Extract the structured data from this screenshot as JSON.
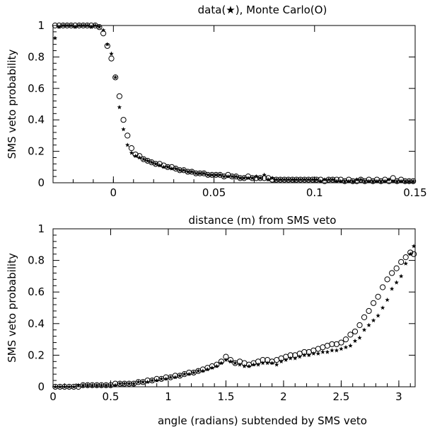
{
  "chart_data": [
    {
      "type": "scatter",
      "title": "data(★), Monte Carlo(O)",
      "xlabel": "distance (m) from SMS veto",
      "ylabel": "SMS veto probability",
      "xlim": [
        -0.03,
        0.15
      ],
      "ylim": [
        0,
        1
      ],
      "xticks": [
        0,
        0.05,
        0.1,
        0.15
      ],
      "xtick_labels": [
        "0",
        "0.05",
        "0.1",
        "0.15"
      ],
      "yticks": [
        0,
        0.2,
        0.4,
        0.6,
        0.8,
        1
      ],
      "ytick_labels": [
        "0",
        "0.2",
        "0.4",
        "0.6",
        "0.8",
        "1"
      ],
      "grid": false,
      "series": [
        {
          "name": "data",
          "marker": "star",
          "x": [
            -0.029,
            -0.027,
            -0.025,
            -0.023,
            -0.021,
            -0.019,
            -0.017,
            -0.015,
            -0.013,
            -0.011,
            -0.009,
            -0.007,
            -0.005,
            -0.003,
            -0.001,
            0.001,
            0.003,
            0.005,
            0.007,
            0.009,
            0.011,
            0.013,
            0.015,
            0.017,
            0.019,
            0.021,
            0.023,
            0.025,
            0.027,
            0.029,
            0.031,
            0.033,
            0.035,
            0.037,
            0.039,
            0.041,
            0.043,
            0.045,
            0.047,
            0.049,
            0.051,
            0.053,
            0.055,
            0.057,
            0.059,
            0.061,
            0.063,
            0.065,
            0.067,
            0.069,
            0.071,
            0.073,
            0.075,
            0.077,
            0.079,
            0.081,
            0.083,
            0.085,
            0.087,
            0.089,
            0.091,
            0.093,
            0.095,
            0.097,
            0.099,
            0.101,
            0.103,
            0.105,
            0.107,
            0.109,
            0.111,
            0.113,
            0.115,
            0.117,
            0.119,
            0.121,
            0.123,
            0.125,
            0.127,
            0.129,
            0.131,
            0.133,
            0.135,
            0.137,
            0.139,
            0.141,
            0.143,
            0.145,
            0.147,
            0.149
          ],
          "y": [
            0.92,
            0.99,
            1.0,
            1.0,
            1.0,
            0.99,
            1.0,
            1.0,
            1.0,
            0.99,
            1.0,
            0.99,
            0.97,
            0.88,
            0.82,
            0.67,
            0.48,
            0.34,
            0.24,
            0.19,
            0.17,
            0.16,
            0.15,
            0.14,
            0.13,
            0.12,
            0.11,
            0.1,
            0.1,
            0.09,
            0.09,
            0.08,
            0.08,
            0.07,
            0.07,
            0.06,
            0.06,
            0.06,
            0.05,
            0.05,
            0.05,
            0.05,
            0.04,
            0.04,
            0.04,
            0.04,
            0.03,
            0.03,
            0.03,
            0.03,
            0.04,
            0.03,
            0.05,
            0.02,
            0.03,
            0.02,
            0.02,
            0.02,
            0.02,
            0.02,
            0.02,
            0.02,
            0.02,
            0.02,
            0.02,
            0.02,
            0.01,
            0.02,
            0.02,
            0.02,
            0.01,
            0.01,
            0.01,
            0.01,
            0.01,
            0.02,
            0.02,
            0.01,
            0.01,
            0.01,
            0.01,
            0.01,
            0.01,
            0.02,
            0.01,
            0.01,
            0.01,
            0.01,
            0.01,
            0.01
          ]
        },
        {
          "name": "Monte Carlo",
          "marker": "circle",
          "x": [
            -0.029,
            -0.027,
            -0.025,
            -0.023,
            -0.021,
            -0.019,
            -0.017,
            -0.015,
            -0.013,
            -0.011,
            -0.009,
            -0.007,
            -0.005,
            -0.003,
            -0.001,
            0.001,
            0.003,
            0.005,
            0.007,
            0.009,
            0.011,
            0.013,
            0.015,
            0.017,
            0.019,
            0.021,
            0.023,
            0.025,
            0.027,
            0.029,
            0.031,
            0.033,
            0.035,
            0.037,
            0.039,
            0.041,
            0.043,
            0.045,
            0.047,
            0.049,
            0.051,
            0.053,
            0.055,
            0.057,
            0.059,
            0.061,
            0.063,
            0.065,
            0.067,
            0.069,
            0.071,
            0.073,
            0.075,
            0.077,
            0.079,
            0.081,
            0.083,
            0.085,
            0.087,
            0.089,
            0.091,
            0.093,
            0.095,
            0.097,
            0.099,
            0.101,
            0.103,
            0.105,
            0.107,
            0.109,
            0.111,
            0.113,
            0.115,
            0.117,
            0.119,
            0.121,
            0.123,
            0.125,
            0.127,
            0.129,
            0.131,
            0.133,
            0.135,
            0.137,
            0.139,
            0.141,
            0.143,
            0.145,
            0.147,
            0.149
          ],
          "y": [
            1.0,
            1.0,
            1.0,
            1.0,
            1.0,
            1.0,
            1.0,
            1.0,
            1.0,
            1.0,
            1.0,
            0.99,
            0.95,
            0.87,
            0.79,
            0.67,
            0.55,
            0.4,
            0.3,
            0.22,
            0.18,
            0.17,
            0.15,
            0.14,
            0.13,
            0.12,
            0.12,
            0.11,
            0.1,
            0.1,
            0.09,
            0.08,
            0.08,
            0.07,
            0.07,
            0.06,
            0.06,
            0.06,
            0.05,
            0.05,
            0.05,
            0.05,
            0.04,
            0.05,
            0.04,
            0.04,
            0.03,
            0.03,
            0.04,
            0.03,
            0.03,
            0.03,
            0.03,
            0.03,
            0.02,
            0.02,
            0.02,
            0.02,
            0.02,
            0.02,
            0.02,
            0.02,
            0.02,
            0.02,
            0.02,
            0.02,
            0.02,
            0.01,
            0.02,
            0.02,
            0.02,
            0.02,
            0.01,
            0.02,
            0.01,
            0.01,
            0.02,
            0.01,
            0.02,
            0.01,
            0.02,
            0.01,
            0.02,
            0.01,
            0.03,
            0.01,
            0.02,
            0.01,
            0.01,
            0.01
          ]
        }
      ]
    },
    {
      "type": "scatter",
      "title": "",
      "xlabel": "angle (radians) subtended by SMS veto",
      "ylabel": "SMS veto probability",
      "xlim": [
        0,
        3.1416
      ],
      "ylim": [
        0,
        1
      ],
      "xticks": [
        0,
        0.5,
        1,
        1.5,
        2,
        2.5,
        3
      ],
      "xtick_labels": [
        "0",
        "0.5",
        "1",
        "1.5",
        "2",
        "2.5",
        "3"
      ],
      "yticks": [
        0,
        0.2,
        0.4,
        0.6,
        0.8,
        1
      ],
      "ytick_labels": [
        "0",
        "0.2",
        "0.4",
        "0.6",
        "0.8",
        "1"
      ],
      "grid": false,
      "series": [
        {
          "name": "data",
          "marker": "star",
          "x": [
            0.02,
            0.06,
            0.1,
            0.14,
            0.18,
            0.22,
            0.26,
            0.3,
            0.34,
            0.38,
            0.42,
            0.46,
            0.5,
            0.54,
            0.58,
            0.62,
            0.66,
            0.7,
            0.74,
            0.78,
            0.82,
            0.86,
            0.9,
            0.94,
            0.98,
            1.02,
            1.06,
            1.1,
            1.14,
            1.18,
            1.22,
            1.26,
            1.3,
            1.34,
            1.38,
            1.42,
            1.46,
            1.5,
            1.54,
            1.58,
            1.62,
            1.66,
            1.7,
            1.74,
            1.78,
            1.82,
            1.86,
            1.9,
            1.94,
            1.98,
            2.02,
            2.06,
            2.1,
            2.14,
            2.18,
            2.22,
            2.26,
            2.3,
            2.34,
            2.38,
            2.42,
            2.46,
            2.5,
            2.54,
            2.58,
            2.62,
            2.66,
            2.7,
            2.74,
            2.78,
            2.82,
            2.86,
            2.9,
            2.94,
            2.98,
            3.02,
            3.06,
            3.1,
            3.13
          ],
          "y": [
            0.0,
            0.0,
            0.0,
            0.0,
            0.0,
            0.01,
            0.01,
            0.01,
            0.01,
            0.01,
            0.01,
            0.01,
            0.01,
            0.01,
            0.02,
            0.02,
            0.02,
            0.02,
            0.03,
            0.03,
            0.03,
            0.04,
            0.04,
            0.05,
            0.05,
            0.06,
            0.06,
            0.07,
            0.08,
            0.08,
            0.09,
            0.1,
            0.1,
            0.11,
            0.12,
            0.13,
            0.15,
            0.17,
            0.16,
            0.15,
            0.14,
            0.13,
            0.13,
            0.14,
            0.14,
            0.15,
            0.15,
            0.15,
            0.14,
            0.16,
            0.17,
            0.18,
            0.18,
            0.19,
            0.2,
            0.2,
            0.21,
            0.21,
            0.22,
            0.22,
            0.23,
            0.23,
            0.24,
            0.25,
            0.26,
            0.29,
            0.31,
            0.36,
            0.39,
            0.42,
            0.45,
            0.5,
            0.55,
            0.62,
            0.66,
            0.7,
            0.78,
            0.84,
            0.89
          ]
        },
        {
          "name": "Monte Carlo",
          "marker": "circle",
          "x": [
            0.02,
            0.06,
            0.1,
            0.14,
            0.18,
            0.22,
            0.26,
            0.3,
            0.34,
            0.38,
            0.42,
            0.46,
            0.5,
            0.54,
            0.58,
            0.62,
            0.66,
            0.7,
            0.74,
            0.78,
            0.82,
            0.86,
            0.9,
            0.94,
            0.98,
            1.02,
            1.06,
            1.1,
            1.14,
            1.18,
            1.22,
            1.26,
            1.3,
            1.34,
            1.38,
            1.42,
            1.46,
            1.5,
            1.54,
            1.58,
            1.62,
            1.66,
            1.7,
            1.74,
            1.78,
            1.82,
            1.86,
            1.9,
            1.94,
            1.98,
            2.02,
            2.06,
            2.1,
            2.14,
            2.18,
            2.22,
            2.26,
            2.3,
            2.34,
            2.38,
            2.42,
            2.46,
            2.5,
            2.54,
            2.58,
            2.62,
            2.66,
            2.7,
            2.74,
            2.78,
            2.82,
            2.86,
            2.9,
            2.94,
            2.98,
            3.02,
            3.06,
            3.1,
            3.13
          ],
          "y": [
            0.0,
            0.0,
            0.0,
            0.0,
            0.0,
            0.0,
            0.01,
            0.01,
            0.01,
            0.01,
            0.01,
            0.01,
            0.01,
            0.02,
            0.02,
            0.02,
            0.02,
            0.02,
            0.03,
            0.03,
            0.04,
            0.04,
            0.05,
            0.05,
            0.06,
            0.06,
            0.07,
            0.07,
            0.08,
            0.09,
            0.09,
            0.1,
            0.11,
            0.12,
            0.13,
            0.14,
            0.16,
            0.19,
            0.17,
            0.15,
            0.16,
            0.15,
            0.14,
            0.15,
            0.16,
            0.17,
            0.17,
            0.16,
            0.17,
            0.18,
            0.19,
            0.2,
            0.2,
            0.21,
            0.22,
            0.22,
            0.23,
            0.24,
            0.25,
            0.26,
            0.27,
            0.27,
            0.28,
            0.3,
            0.33,
            0.35,
            0.39,
            0.44,
            0.48,
            0.53,
            0.57,
            0.63,
            0.68,
            0.72,
            0.75,
            0.79,
            0.82,
            0.85,
            0.84
          ]
        }
      ]
    }
  ]
}
